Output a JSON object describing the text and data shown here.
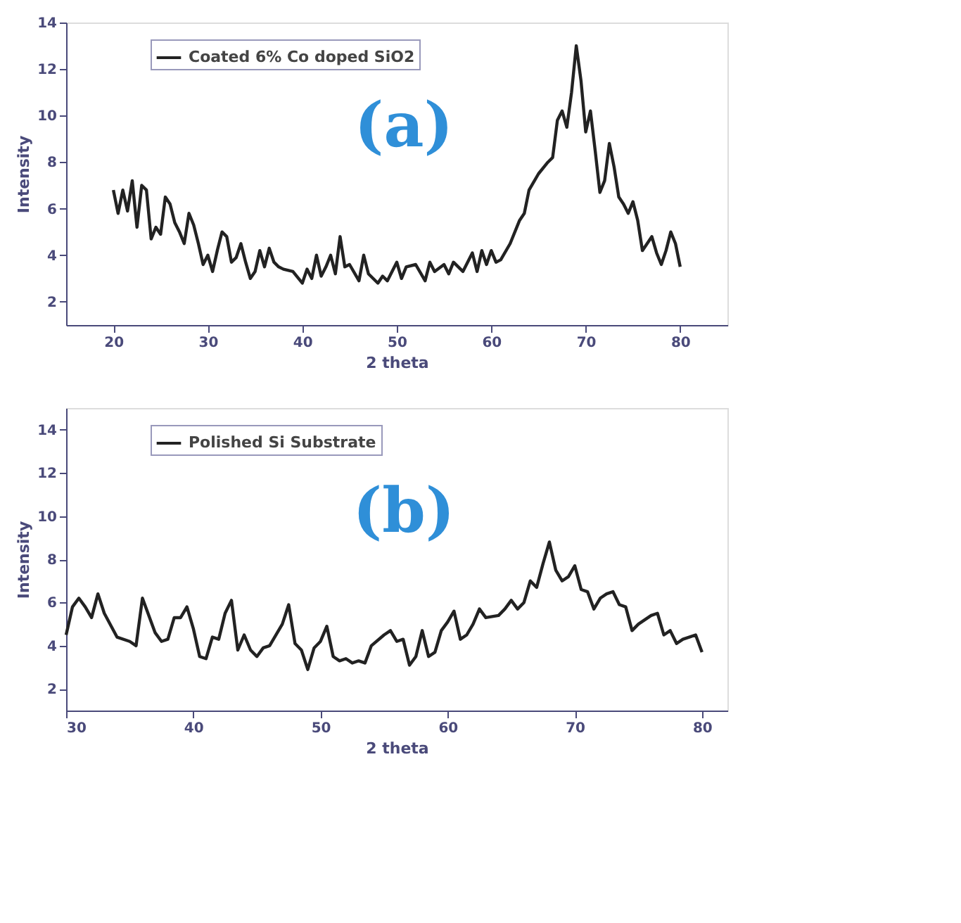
{
  "chart_data": [
    {
      "type": "line",
      "xlabel": "2 theta",
      "ylabel": "Intensity",
      "annotations": [
        "(a)"
      ],
      "xlim": [
        15,
        85
      ],
      "ylim": [
        1,
        14
      ],
      "xticks": [
        20,
        30,
        40,
        50,
        60,
        70,
        80
      ],
      "yticks": [
        2,
        4,
        6,
        8,
        10,
        12,
        14
      ],
      "legend": "top left",
      "grid": false,
      "series": [
        {
          "name": "Coated 6% Co doped SiO2",
          "color": "#222222",
          "x": [
            20,
            20.5,
            21,
            21.5,
            22,
            22.5,
            23,
            23.5,
            24,
            24.5,
            25,
            25.5,
            26,
            26.5,
            27,
            27.5,
            28,
            28.5,
            29,
            29.5,
            30,
            30.5,
            31,
            31.5,
            32,
            32.5,
            33,
            33.5,
            34,
            34.5,
            35,
            35.5,
            36,
            36.5,
            37,
            37.5,
            38,
            39,
            40,
            40.5,
            41,
            41.5,
            42,
            42.5,
            43,
            43.5,
            44,
            44.5,
            45,
            46,
            46.5,
            47,
            48,
            48.5,
            49,
            50,
            50.5,
            51,
            52,
            53,
            53.5,
            54,
            55,
            55.5,
            56,
            57,
            58,
            58.5,
            59,
            59.5,
            60,
            60.5,
            61,
            62,
            63,
            63.5,
            64,
            65,
            66,
            66.5,
            67,
            67.5,
            68,
            68.5,
            69,
            69.5,
            70,
            70.5,
            71,
            71.5,
            72,
            72.5,
            73,
            73.5,
            74,
            74.5,
            75,
            75.5,
            76,
            76.5,
            77,
            77.5,
            78,
            78.5,
            79,
            79.5,
            80
          ],
          "values": [
            6.8,
            5.8,
            6.8,
            5.9,
            7.2,
            5.2,
            7.0,
            6.8,
            4.7,
            5.2,
            4.9,
            6.5,
            6.2,
            5.4,
            5.0,
            4.5,
            5.8,
            5.3,
            4.5,
            3.6,
            4.0,
            3.3,
            4.2,
            5.0,
            4.8,
            3.7,
            3.9,
            4.5,
            3.7,
            3.0,
            3.3,
            4.2,
            3.5,
            4.3,
            3.7,
            3.5,
            3.4,
            3.3,
            2.8,
            3.4,
            3.0,
            4.0,
            3.1,
            3.5,
            4.0,
            3.2,
            4.8,
            3.5,
            3.6,
            2.9,
            4.0,
            3.2,
            2.8,
            3.1,
            2.9,
            3.7,
            3.0,
            3.5,
            3.6,
            2.9,
            3.7,
            3.3,
            3.6,
            3.2,
            3.7,
            3.3,
            4.1,
            3.3,
            4.2,
            3.6,
            4.2,
            3.7,
            3.8,
            4.5,
            5.5,
            5.8,
            6.8,
            7.5,
            8.0,
            8.2,
            9.8,
            10.2,
            9.5,
            11,
            13,
            11.5,
            9.3,
            10.2,
            8.5,
            6.7,
            7.2,
            8.8,
            7.8,
            6.5,
            6.2,
            5.8,
            6.3,
            5.5,
            4.2,
            4.5,
            4.8,
            4.1,
            3.6,
            4.2,
            5.0,
            4.5,
            3.5
          ]
        }
      ]
    },
    {
      "type": "line",
      "xlabel": "2 theta",
      "ylabel": "Intensity",
      "annotations": [
        "(b)"
      ],
      "xlim": [
        30,
        82
      ],
      "ylim": [
        1,
        15
      ],
      "xticks": [
        30,
        40,
        50,
        60,
        70,
        80
      ],
      "yticks": [
        2,
        4,
        6,
        8,
        10,
        12,
        14
      ],
      "legend": "top left",
      "grid": false,
      "series": [
        {
          "name": "Polished Si Substrate",
          "color": "#222222",
          "x": [
            30,
            30.5,
            31,
            31.5,
            32,
            32.5,
            33,
            34,
            35,
            35.5,
            36,
            37,
            37.5,
            38,
            38.5,
            39,
            39.5,
            40,
            40.5,
            41,
            41.5,
            42,
            42.5,
            43,
            43.5,
            44,
            44.5,
            45,
            45.5,
            46,
            47,
            47.5,
            48,
            48.5,
            49,
            49.5,
            50,
            50.5,
            51,
            51.5,
            52,
            52.5,
            53,
            53.5,
            54,
            55,
            55.5,
            56,
            56.5,
            57,
            57.5,
            58,
            58.5,
            59,
            59.5,
            60,
            60.5,
            61,
            61.5,
            62,
            62.5,
            63,
            64,
            64.5,
            65,
            65.5,
            66,
            66.5,
            67,
            67.5,
            68,
            68.5,
            69,
            69.5,
            70,
            70.5,
            71,
            71.5,
            72,
            72.5,
            73,
            73.5,
            74,
            74.5,
            75,
            76,
            76.5,
            77,
            77.5,
            78,
            78.5,
            79,
            79.5,
            80
          ],
          "values": [
            4.5,
            5.8,
            6.2,
            5.8,
            5.3,
            6.4,
            5.5,
            4.4,
            4.2,
            4.0,
            6.2,
            4.6,
            4.2,
            4.3,
            5.3,
            5.3,
            5.8,
            4.8,
            3.5,
            3.4,
            4.4,
            4.3,
            5.5,
            6.1,
            3.8,
            4.5,
            3.8,
            3.5,
            3.9,
            4.0,
            5.0,
            5.9,
            4.1,
            3.8,
            2.9,
            3.9,
            4.2,
            4.9,
            3.5,
            3.3,
            3.4,
            3.2,
            3.3,
            3.2,
            4.0,
            4.5,
            4.7,
            4.2,
            4.3,
            3.1,
            3.5,
            4.7,
            3.5,
            3.7,
            4.7,
            5.1,
            5.6,
            4.3,
            4.5,
            5.0,
            5.7,
            5.3,
            5.4,
            5.7,
            6.1,
            5.7,
            6.0,
            7.0,
            6.7,
            7.8,
            8.8,
            7.5,
            7.0,
            7.2,
            7.7,
            6.6,
            6.5,
            5.7,
            6.2,
            6.4,
            6.5,
            5.9,
            5.8,
            4.7,
            5.0,
            5.4,
            5.5,
            4.5,
            4.7,
            4.1,
            4.3,
            4.4,
            4.5,
            3.7
          ]
        }
      ]
    }
  ]
}
